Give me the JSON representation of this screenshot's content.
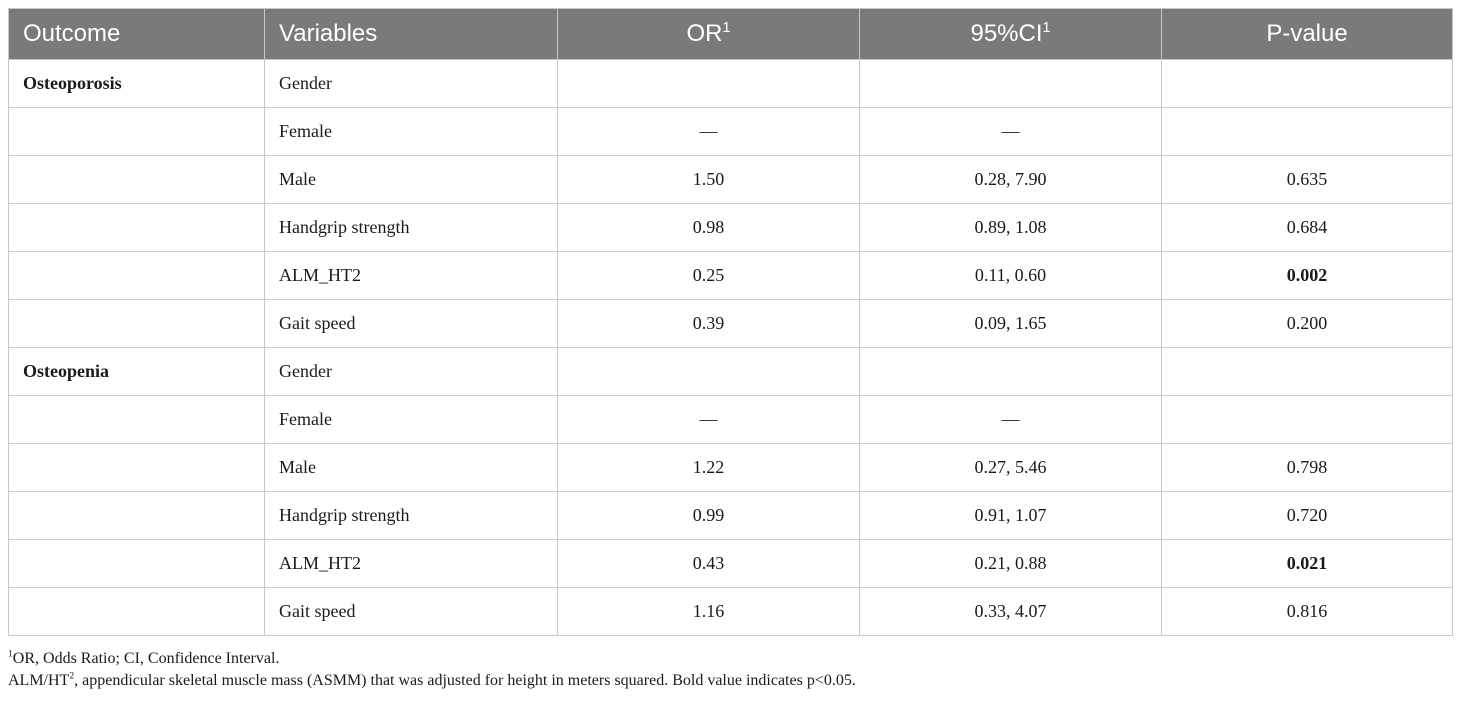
{
  "table": {
    "headers": {
      "outcome": "Outcome",
      "variables": "Variables",
      "or": "OR",
      "or_sup": "1",
      "ci": "95%CI",
      "ci_sup": "1",
      "p": "P-value"
    },
    "rows": [
      {
        "outcome": "Osteoporosis",
        "variable": "Gender",
        "or": "",
        "ci": "",
        "p": ""
      },
      {
        "outcome": "",
        "variable": "Female",
        "or": "—",
        "ci": "—",
        "p": ""
      },
      {
        "outcome": "",
        "variable": "Male",
        "or": "1.50",
        "ci": "0.28, 7.90",
        "p": "0.635"
      },
      {
        "outcome": "",
        "variable": "Handgrip strength",
        "or": "0.98",
        "ci": "0.89, 1.08",
        "p": "0.684"
      },
      {
        "outcome": "",
        "variable": "ALM_HT2",
        "or": "0.25",
        "ci": "0.11, 0.60",
        "p": "0.002"
      },
      {
        "outcome": "",
        "variable": "Gait speed",
        "or": "0.39",
        "ci": "0.09, 1.65",
        "p": "0.200"
      },
      {
        "outcome": "Osteopenia",
        "variable": "Gender",
        "or": "",
        "ci": "",
        "p": ""
      },
      {
        "outcome": "",
        "variable": "Female",
        "or": "—",
        "ci": "—",
        "p": ""
      },
      {
        "outcome": "",
        "variable": "Male",
        "or": "1.22",
        "ci": "0.27, 5.46",
        "p": "0.798"
      },
      {
        "outcome": "",
        "variable": "Handgrip strength",
        "or": "0.99",
        "ci": "0.91, 1.07",
        "p": "0.720"
      },
      {
        "outcome": "",
        "variable": "ALM_HT2",
        "or": "0.43",
        "ci": "0.21, 0.88",
        "p": "0.021"
      },
      {
        "outcome": "",
        "variable": "Gait speed",
        "or": "1.16",
        "ci": "0.33, 4.07",
        "p": "0.816"
      }
    ]
  },
  "footnotes": {
    "note1_sup": "1",
    "note1_text": "OR, Odds Ratio; CI, Confidence Interval.",
    "note2_prefix": "ALM/HT",
    "note2_sup": "2",
    "note2_text": ", appendicular skeletal muscle mass (ASMM) that was adjusted for height in meters squared. Bold value indicates p<0.05."
  }
}
